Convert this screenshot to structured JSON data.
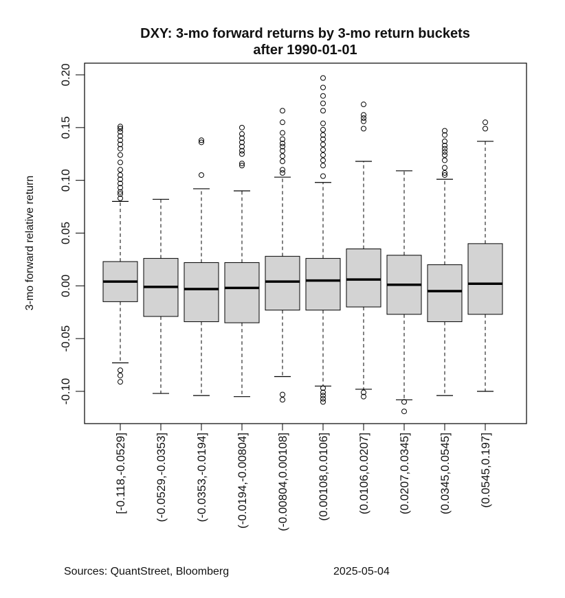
{
  "chart_data": {
    "type": "box",
    "title_lines": [
      "DXY: 3-mo forward returns by 3-mo return buckets",
      "after 1990-01-01"
    ],
    "xlabel": "",
    "ylabel": "3-mo forward relative return",
    "ylim": [
      -0.13,
      0.205
    ],
    "yticks": [
      -0.1,
      -0.05,
      0.0,
      0.05,
      0.1,
      0.15,
      0.2
    ],
    "ytick_labels": [
      "-0.10",
      "-0.05",
      "0.00",
      "0.05",
      "0.10",
      "0.15",
      "0.20"
    ],
    "categories": [
      "[-0.118,-0.0529]",
      "(-0.0529,-0.0353]",
      "(-0.0353,-0.0194]",
      "(-0.0194,-0.00804]",
      "(-0.00804,0.00108]",
      "(0.00108,0.0106]",
      "(0.0106,0.0207]",
      "(0.0207,0.0345]",
      "(0.0345,0.0545]",
      "(0.0545,0.197]"
    ],
    "boxes": [
      {
        "whisker_low": -0.073,
        "q1": -0.015,
        "median": 0.004,
        "q3": 0.023,
        "whisker_high": 0.08,
        "outliers": [
          -0.08,
          -0.085,
          -0.091,
          0.083,
          0.087,
          0.089,
          0.093,
          0.097,
          0.101,
          0.105,
          0.11,
          0.117,
          0.124,
          0.13,
          0.134,
          0.138,
          0.142,
          0.146,
          0.149,
          0.151
        ]
      },
      {
        "whisker_low": -0.102,
        "q1": -0.029,
        "median": -0.001,
        "q3": 0.026,
        "whisker_high": 0.082,
        "outliers": []
      },
      {
        "whisker_low": -0.104,
        "q1": -0.034,
        "median": -0.003,
        "q3": 0.022,
        "whisker_high": 0.092,
        "outliers": [
          0.105,
          0.136,
          0.138
        ]
      },
      {
        "whisker_low": -0.105,
        "q1": -0.035,
        "median": -0.002,
        "q3": 0.022,
        "whisker_high": 0.09,
        "outliers": [
          0.114,
          0.116,
          0.125,
          0.128,
          0.132,
          0.136,
          0.14,
          0.144,
          0.15
        ]
      },
      {
        "whisker_low": -0.086,
        "q1": -0.023,
        "median": 0.004,
        "q3": 0.028,
        "whisker_high": 0.103,
        "outliers": [
          -0.103,
          -0.108,
          0.107,
          0.11,
          0.118,
          0.123,
          0.128,
          0.132,
          0.135,
          0.139,
          0.145,
          0.155,
          0.166
        ]
      },
      {
        "whisker_low": -0.095,
        "q1": -0.023,
        "median": 0.005,
        "q3": 0.026,
        "whisker_high": 0.098,
        "outliers": [
          -0.097,
          -0.101,
          -0.104,
          -0.107,
          -0.11,
          0.104,
          0.114,
          0.119,
          0.124,
          0.129,
          0.134,
          0.139,
          0.143,
          0.148,
          0.154,
          0.166,
          0.173,
          0.18,
          0.188,
          0.197
        ]
      },
      {
        "whisker_low": -0.098,
        "q1": -0.02,
        "median": 0.006,
        "q3": 0.035,
        "whisker_high": 0.118,
        "outliers": [
          -0.101,
          -0.105,
          0.149,
          0.156,
          0.159,
          0.162,
          0.172
        ]
      },
      {
        "whisker_low": -0.108,
        "q1": -0.027,
        "median": 0.001,
        "q3": 0.029,
        "whisker_high": 0.109,
        "outliers": [
          -0.11,
          -0.119
        ]
      },
      {
        "whisker_low": -0.104,
        "q1": -0.034,
        "median": -0.005,
        "q3": 0.02,
        "whisker_high": 0.101,
        "outliers": [
          0.105,
          0.107,
          0.112,
          0.119,
          0.124,
          0.127,
          0.13,
          0.133,
          0.137,
          0.143,
          0.147
        ]
      },
      {
        "whisker_low": -0.1,
        "q1": -0.027,
        "median": 0.002,
        "q3": 0.04,
        "whisker_high": 0.137,
        "outliers": [
          0.149,
          0.155
        ]
      }
    ],
    "box_fill": "#d3d3d3",
    "grid": false,
    "legend": "none"
  },
  "footer": {
    "sources": "Sources: QuantStreet, Bloomberg",
    "date": "2025-05-04"
  }
}
